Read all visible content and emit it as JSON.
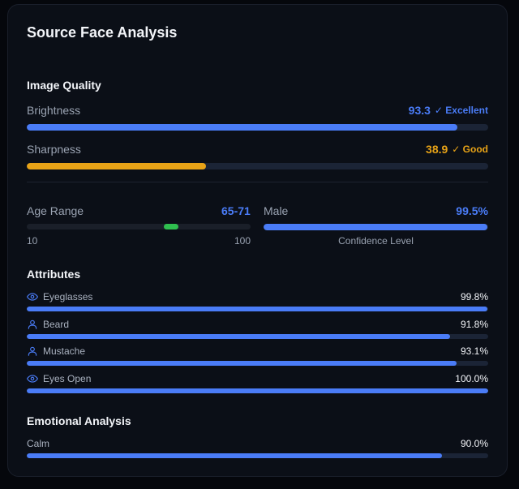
{
  "title": "Source Face Analysis",
  "colors": {
    "accent": "#4a7cf7",
    "warning": "#e8a317",
    "success": "#2fbf4f",
    "track": "#1b2436"
  },
  "image_quality": {
    "heading": "Image Quality",
    "brightness": {
      "label": "Brightness",
      "value": "93.3",
      "badge": "✓ Excellent",
      "fraction": 0.933
    },
    "sharpness": {
      "label": "Sharpness",
      "value": "38.9",
      "badge": "✓ Good",
      "fraction": 0.389
    }
  },
  "age": {
    "label": "Age Range",
    "value": "65-71",
    "min_label": "10",
    "max_label": "100",
    "min": 10,
    "max": 100,
    "low": 65,
    "high": 71
  },
  "gender": {
    "label": "Male",
    "value": "99.5%",
    "caption": "Confidence Level",
    "fraction": 0.995
  },
  "attributes": {
    "heading": "Attributes",
    "items": [
      {
        "icon": "eye-icon",
        "label": "Eyeglasses",
        "value": "99.8%",
        "fraction": 0.998
      },
      {
        "icon": "person-icon",
        "label": "Beard",
        "value": "91.8%",
        "fraction": 0.918
      },
      {
        "icon": "person-icon",
        "label": "Mustache",
        "value": "93.1%",
        "fraction": 0.931
      },
      {
        "icon": "eye-icon",
        "label": "Eyes Open",
        "value": "100.0%",
        "fraction": 1.0
      }
    ]
  },
  "emotions": {
    "heading": "Emotional Analysis",
    "items": [
      {
        "label": "Calm",
        "value": "90.0%",
        "fraction": 0.9
      }
    ]
  }
}
